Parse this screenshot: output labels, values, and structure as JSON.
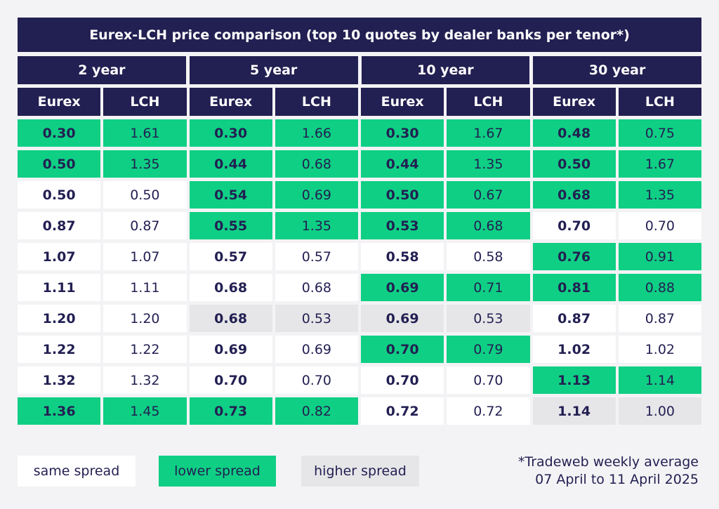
{
  "title": "Eurex-LCH price comparison (top 10 quotes by dealer banks per tenor*)",
  "colors": {
    "header": "#221f52",
    "same": "#ffffff",
    "lower": "#0fcf84",
    "higher": "#e6e6e8",
    "text": "#221f52"
  },
  "columns": [
    "Eurex",
    "LCH"
  ],
  "legend": {
    "same": "same spread",
    "lower": "lower spread",
    "higher": "higher spread"
  },
  "footnote": {
    "line1": "*Tradeweb weekly average",
    "line2": "07 April to 11 April 2025"
  },
  "chart_data": {
    "type": "table",
    "title": "Eurex-LCH price comparison (top 10 quotes by dealer banks per tenor*)",
    "tenors": [
      {
        "label": "2 year",
        "rows": [
          {
            "eurex": "0.30",
            "lch": "1.61",
            "category": "lower"
          },
          {
            "eurex": "0.50",
            "lch": "1.35",
            "category": "lower"
          },
          {
            "eurex": "0.50",
            "lch": "0.50",
            "category": "same"
          },
          {
            "eurex": "0.87",
            "lch": "0.87",
            "category": "same"
          },
          {
            "eurex": "1.07",
            "lch": "1.07",
            "category": "same"
          },
          {
            "eurex": "1.11",
            "lch": "1.11",
            "category": "same"
          },
          {
            "eurex": "1.20",
            "lch": "1.20",
            "category": "same"
          },
          {
            "eurex": "1.22",
            "lch": "1.22",
            "category": "same"
          },
          {
            "eurex": "1.32",
            "lch": "1.32",
            "category": "same"
          },
          {
            "eurex": "1.36",
            "lch": "1.45",
            "category": "lower"
          }
        ]
      },
      {
        "label": "5 year",
        "rows": [
          {
            "eurex": "0.30",
            "lch": "1.66",
            "category": "lower"
          },
          {
            "eurex": "0.44",
            "lch": "0.68",
            "category": "lower"
          },
          {
            "eurex": "0.54",
            "lch": "0.69",
            "category": "lower"
          },
          {
            "eurex": "0.55",
            "lch": "1.35",
            "category": "lower"
          },
          {
            "eurex": "0.57",
            "lch": "0.57",
            "category": "same"
          },
          {
            "eurex": "0.68",
            "lch": "0.68",
            "category": "same"
          },
          {
            "eurex": "0.68",
            "lch": "0.53",
            "category": "higher"
          },
          {
            "eurex": "0.69",
            "lch": "0.69",
            "category": "same"
          },
          {
            "eurex": "0.70",
            "lch": "0.70",
            "category": "same"
          },
          {
            "eurex": "0.73",
            "lch": "0.82",
            "category": "lower"
          }
        ]
      },
      {
        "label": "10 year",
        "rows": [
          {
            "eurex": "0.30",
            "lch": "1.67",
            "category": "lower"
          },
          {
            "eurex": "0.44",
            "lch": "1.35",
            "category": "lower"
          },
          {
            "eurex": "0.50",
            "lch": "0.67",
            "category": "lower"
          },
          {
            "eurex": "0.53",
            "lch": "0.68",
            "category": "lower"
          },
          {
            "eurex": "0.58",
            "lch": "0.58",
            "category": "same"
          },
          {
            "eurex": "0.69",
            "lch": "0.71",
            "category": "lower"
          },
          {
            "eurex": "0.69",
            "lch": "0.53",
            "category": "higher"
          },
          {
            "eurex": "0.70",
            "lch": "0.79",
            "category": "lower"
          },
          {
            "eurex": "0.70",
            "lch": "0.70",
            "category": "same"
          },
          {
            "eurex": "0.72",
            "lch": "0.72",
            "category": "same"
          }
        ]
      },
      {
        "label": "30 year",
        "rows": [
          {
            "eurex": "0.48",
            "lch": "0.75",
            "category": "lower"
          },
          {
            "eurex": "0.50",
            "lch": "1.67",
            "category": "lower"
          },
          {
            "eurex": "0.68",
            "lch": "1.35",
            "category": "lower"
          },
          {
            "eurex": "0.70",
            "lch": "0.70",
            "category": "same"
          },
          {
            "eurex": "0.76",
            "lch": "0.91",
            "category": "lower"
          },
          {
            "eurex": "0.81",
            "lch": "0.88",
            "category": "lower"
          },
          {
            "eurex": "0.87",
            "lch": "0.87",
            "category": "same"
          },
          {
            "eurex": "1.02",
            "lch": "1.02",
            "category": "same"
          },
          {
            "eurex": "1.13",
            "lch": "1.14",
            "category": "lower"
          },
          {
            "eurex": "1.14",
            "lch": "1.00",
            "category": "higher"
          }
        ]
      }
    ]
  }
}
